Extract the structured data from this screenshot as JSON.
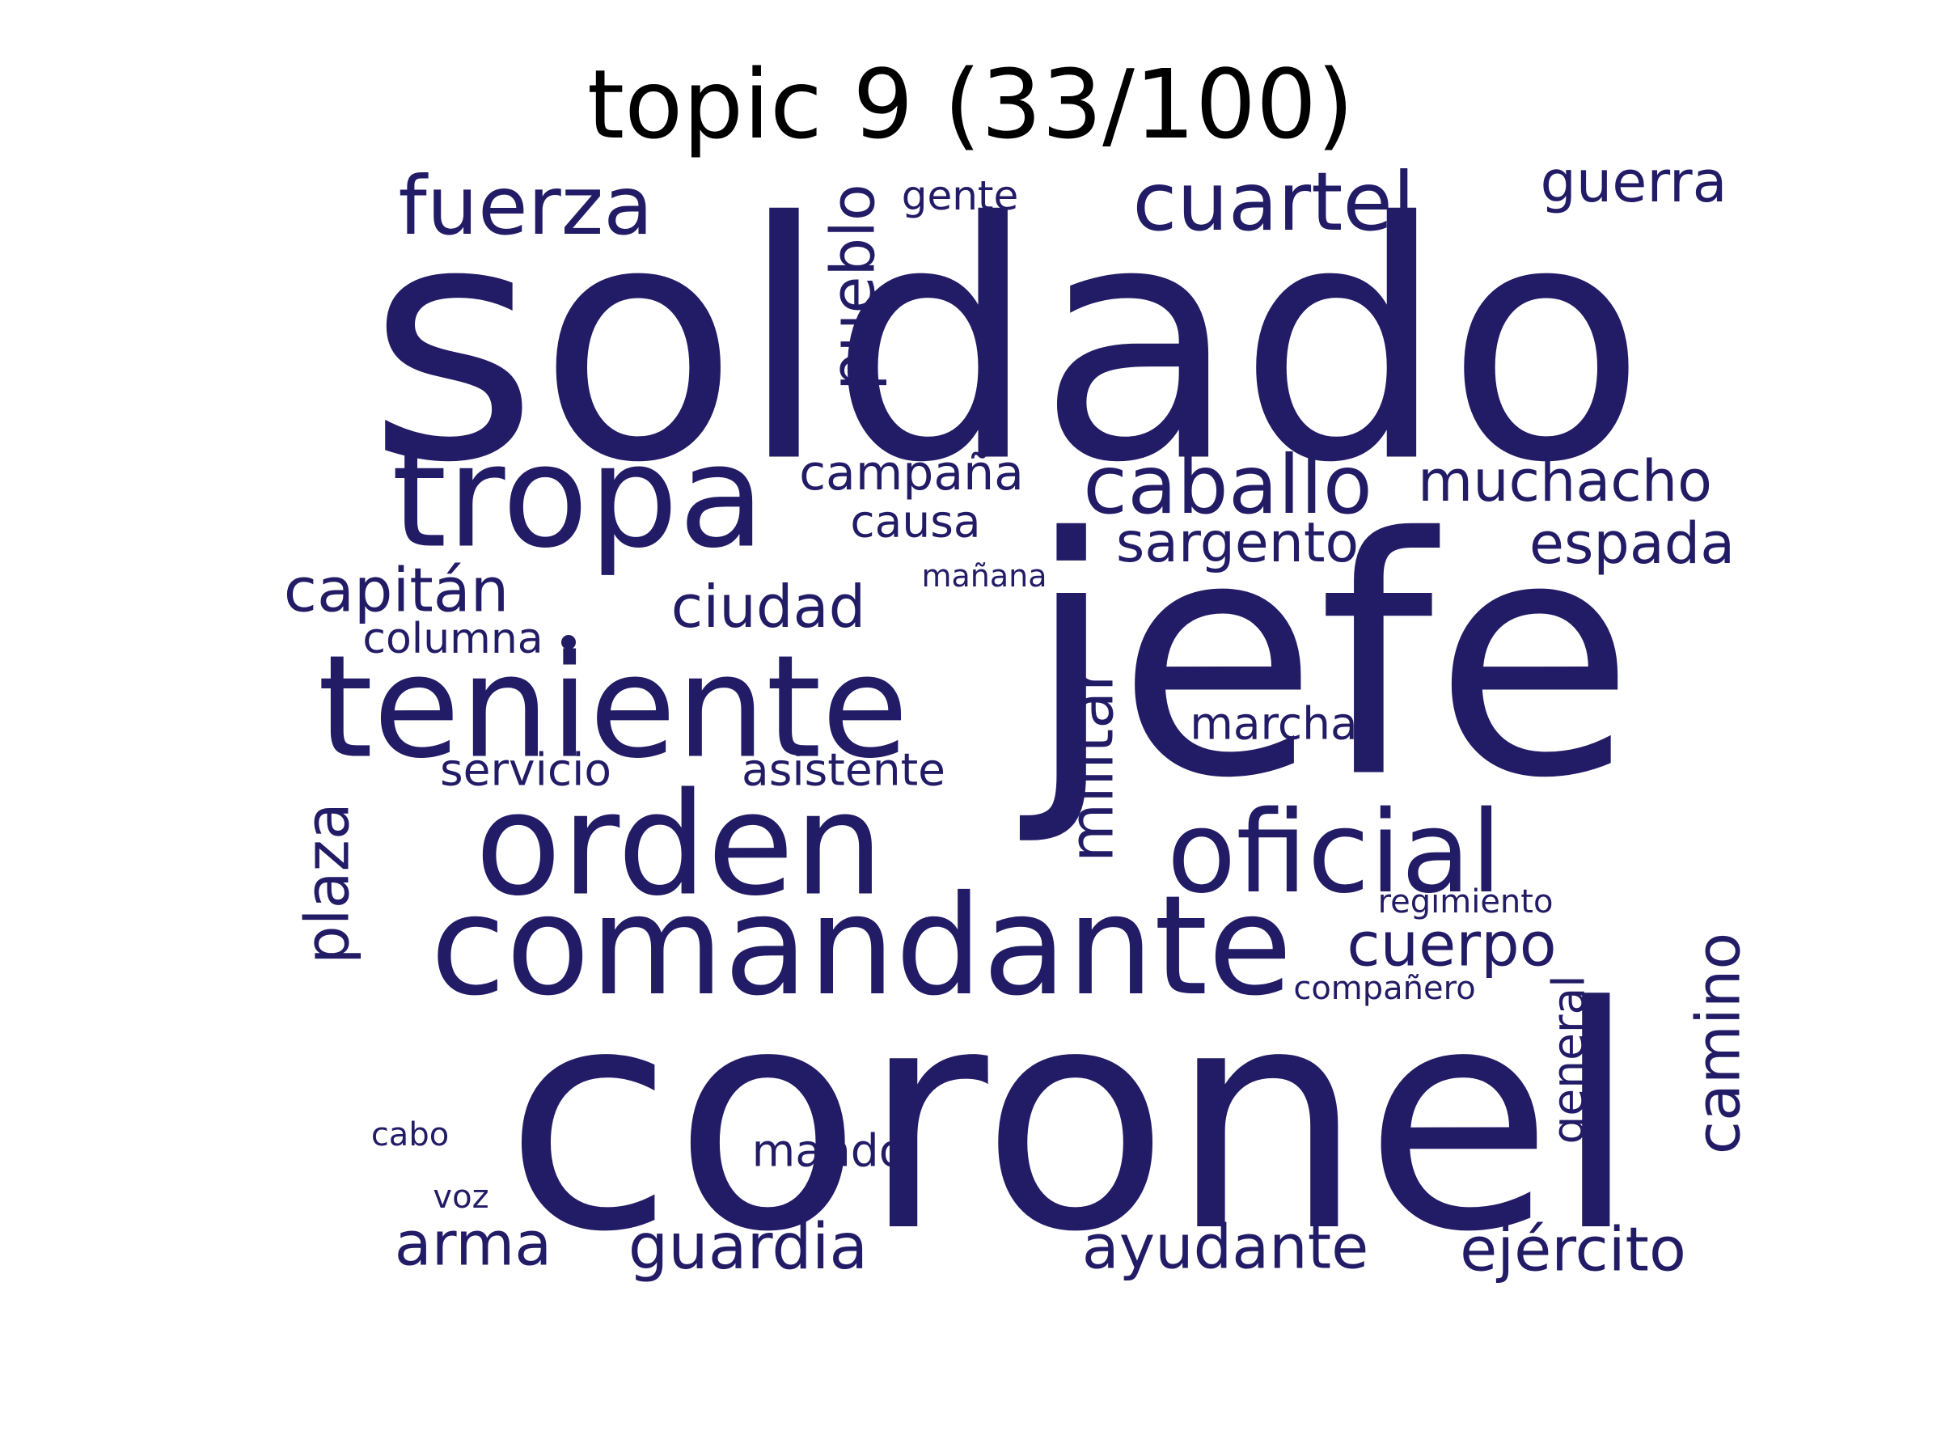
{
  "title": "topic 9 (33/100)",
  "word_color": "#221c66",
  "words": [
    {
      "text": "soldado",
      "weight": 1.0
    },
    {
      "text": "jefe",
      "weight": 0.9
    },
    {
      "text": "coronel",
      "weight": 0.95
    },
    {
      "text": "tropa",
      "weight": 0.55
    },
    {
      "text": "teniente",
      "weight": 0.55
    },
    {
      "text": "orden",
      "weight": 0.55
    },
    {
      "text": "comandante",
      "weight": 0.55
    },
    {
      "text": "oficial",
      "weight": 0.45
    },
    {
      "text": "fuerza",
      "weight": 0.35
    },
    {
      "text": "cuartel",
      "weight": 0.35
    },
    {
      "text": "caballo",
      "weight": 0.35
    },
    {
      "text": "pueblo",
      "weight": 0.28
    },
    {
      "text": "guerra",
      "weight": 0.25
    },
    {
      "text": "gente",
      "weight": 0.17
    },
    {
      "text": "muchacho",
      "weight": 0.26
    },
    {
      "text": "campaña",
      "weight": 0.22
    },
    {
      "text": "causa",
      "weight": 0.19
    },
    {
      "text": "sargento",
      "weight": 0.24
    },
    {
      "text": "espada",
      "weight": 0.25
    },
    {
      "text": "capitán",
      "weight": 0.28
    },
    {
      "text": "ciudad",
      "weight": 0.26
    },
    {
      "text": "mañana",
      "weight": 0.14
    },
    {
      "text": "columna",
      "weight": 0.18
    },
    {
      "text": "militar",
      "weight": 0.27
    },
    {
      "text": "marcha",
      "weight": 0.2
    },
    {
      "text": "servicio",
      "weight": 0.2
    },
    {
      "text": "asistente",
      "weight": 0.2
    },
    {
      "text": "plaza",
      "weight": 0.27
    },
    {
      "text": "cuerpo",
      "weight": 0.28
    },
    {
      "text": "regimiento",
      "weight": 0.14
    },
    {
      "text": "compañero",
      "weight": 0.14
    },
    {
      "text": "camino",
      "weight": 0.28
    },
    {
      "text": "general",
      "weight": 0.2
    },
    {
      "text": "cabo",
      "weight": 0.14
    },
    {
      "text": "mando",
      "weight": 0.2
    },
    {
      "text": "voz",
      "weight": 0.14
    },
    {
      "text": "arma",
      "weight": 0.28
    },
    {
      "text": "guardia",
      "weight": 0.28
    },
    {
      "text": "ayudante",
      "weight": 0.28
    },
    {
      "text": "ejército",
      "weight": 0.28
    }
  ]
}
